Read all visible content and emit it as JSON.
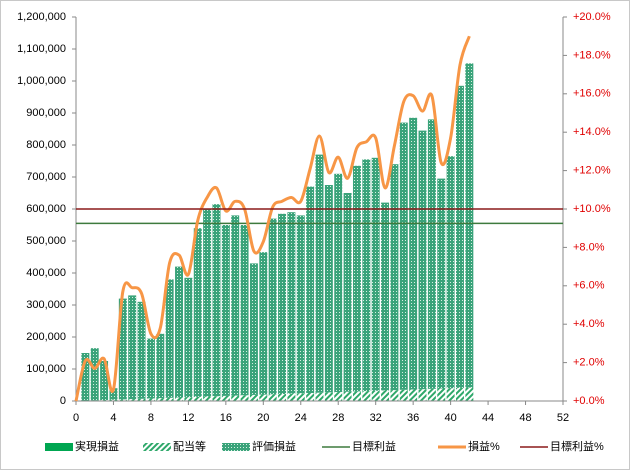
{
  "chart_data": {
    "type": "combo",
    "x": [
      0,
      1,
      2,
      3,
      4,
      5,
      6,
      7,
      8,
      9,
      10,
      11,
      12,
      13,
      14,
      15,
      16,
      17,
      18,
      19,
      20,
      21,
      22,
      23,
      24,
      25,
      26,
      27,
      28,
      29,
      30,
      31,
      32,
      33,
      34,
      35,
      36,
      37,
      38,
      39,
      40,
      41,
      42
    ],
    "xlim": [
      0,
      52
    ],
    "xticks": [
      0,
      4,
      8,
      12,
      16,
      20,
      24,
      28,
      32,
      36,
      40,
      44,
      48,
      52
    ],
    "ylim": [
      0,
      1200000
    ],
    "yticks": [
      0,
      {
        "value": 100000,
        "label": "100,000"
      },
      {
        "value": 200000,
        "label": "200,000"
      },
      {
        "value": 300000,
        "label": "300,000"
      },
      {
        "value": 400000,
        "label": "400,000"
      },
      {
        "value": 500000,
        "label": "500,000"
      },
      {
        "value": 600000,
        "label": "600,000"
      },
      {
        "value": 700000,
        "label": "700,000"
      },
      {
        "value": 800000,
        "label": "800,000"
      },
      {
        "value": 900000,
        "label": "900,000"
      },
      {
        "value": 1000000,
        "label": "1,000,000"
      },
      {
        "value": 1100000,
        "label": "1,100,000"
      },
      {
        "value": 1200000,
        "label": "1,200,000"
      }
    ],
    "y2lim": [
      0,
      20
    ],
    "y2ticks": [
      {
        "value": 0,
        "label": "+0.0%"
      },
      {
        "value": 2,
        "label": "+2.0%"
      },
      {
        "value": 4,
        "label": "+4.0%"
      },
      {
        "value": 6,
        "label": "+6.0%"
      },
      {
        "value": 8,
        "label": "+8.0%"
      },
      {
        "value": 10,
        "label": "+10.0%"
      },
      {
        "value": 12,
        "label": "+12.0%"
      },
      {
        "value": 14,
        "label": "+14.0%"
      },
      {
        "value": 16,
        "label": "+16.0%"
      },
      {
        "value": 18,
        "label": "+18.0%"
      },
      {
        "value": 20,
        "label": "+20.0%"
      }
    ],
    "series": [
      {
        "name": "実現損益",
        "kind": "bar",
        "color": "#00a651",
        "pattern": "solid",
        "values": [
          null,
          0,
          0,
          0,
          0,
          0,
          0,
          0,
          0,
          0,
          0,
          0,
          0,
          0,
          0,
          0,
          0,
          0,
          0,
          0,
          0,
          0,
          0,
          0,
          0,
          0,
          0,
          0,
          0,
          0,
          0,
          0,
          0,
          0,
          0,
          0,
          0,
          0,
          0,
          0,
          0,
          0,
          0
        ]
      },
      {
        "name": "配当等",
        "kind": "bar",
        "color": "#2ea86a",
        "pattern": "hatch",
        "values": [
          null,
          1000,
          2000,
          3000,
          4000,
          5000,
          6000,
          7000,
          8000,
          9000,
          10000,
          11000,
          12000,
          13000,
          14000,
          15000,
          16000,
          17000,
          18000,
          19000,
          20000,
          21000,
          22000,
          23000,
          24000,
          25000,
          26000,
          27000,
          28000,
          29000,
          30000,
          31000,
          32000,
          33000,
          34000,
          35000,
          36000,
          37000,
          38000,
          39000,
          40000,
          41000,
          42000
        ]
      },
      {
        "name": "評価損益",
        "kind": "bar",
        "color": "#3aa37a",
        "pattern": "dots",
        "values": [
          null,
          149000,
          163000,
          122000,
          36000,
          315000,
          324000,
          303000,
          187000,
          201000,
          370000,
          409000,
          373000,
          527000,
          586000,
          600000,
          534000,
          563000,
          532000,
          411000,
          445000,
          549000,
          563000,
          567000,
          556000,
          645000,
          744000,
          648000,
          682000,
          621000,
          705000,
          724000,
          728000,
          587000,
          706000,
          835000,
          849000,
          808000,
          842000,
          656000,
          725000,
          944000,
          1013000
        ]
      },
      {
        "name": "目標利益",
        "kind": "hline",
        "color": "#3d7a3d",
        "value": 555000
      },
      {
        "name": "損益%",
        "kind": "line",
        "axis": "y2",
        "color": "#f79646",
        "values": [
          0,
          2.1,
          1.7,
          2.2,
          0.6,
          5.7,
          5.9,
          5.6,
          3.5,
          3.8,
          7.2,
          7.6,
          6.6,
          9.4,
          10.6,
          11.1,
          9.9,
          10.4,
          10.0,
          7.8,
          8.3,
          10.1,
          10.4,
          10.6,
          10.4,
          12.1,
          13.8,
          11.9,
          12.7,
          11.6,
          13.2,
          13.5,
          13.7,
          11.1,
          13.3,
          15.6,
          15.9,
          15.1,
          15.9,
          12.4,
          13.7,
          17.5,
          19.0
        ]
      },
      {
        "name": "目標利益%",
        "kind": "hline",
        "axis": "y2",
        "color": "#8b1a1a",
        "value": 10.0
      }
    ]
  }
}
